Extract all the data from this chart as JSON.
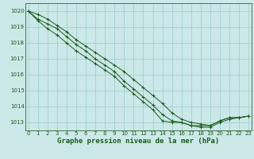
{
  "title": "Graphe pression niveau de la mer (hPa)",
  "xlabel_hours": [
    0,
    1,
    2,
    3,
    4,
    5,
    6,
    7,
    8,
    9,
    10,
    11,
    12,
    13,
    14,
    15,
    16,
    17,
    18,
    19,
    20,
    21,
    22,
    23
  ],
  "line1": [
    1020.0,
    1019.8,
    1019.5,
    1019.1,
    1018.7,
    1018.2,
    1017.8,
    1017.4,
    1017.0,
    1016.6,
    1016.2,
    1015.7,
    1015.2,
    1014.7,
    1014.2,
    1013.6,
    1013.2,
    1013.0,
    1012.9,
    1012.8,
    1013.1,
    1013.3,
    1013.3,
    1013.4
  ],
  "line2": [
    1020.0,
    1019.5,
    1019.2,
    1018.9,
    1018.4,
    1017.9,
    1017.5,
    1017.0,
    1016.6,
    1016.2,
    1015.6,
    1015.1,
    1014.6,
    1014.1,
    1013.5,
    1013.1,
    1013.0,
    1012.8,
    1012.8,
    1012.8,
    1013.1,
    1013.3,
    1013.3,
    1013.4
  ],
  "line3": [
    1020.0,
    1019.4,
    1018.9,
    1018.5,
    1018.0,
    1017.5,
    1017.1,
    1016.7,
    1016.3,
    1015.9,
    1015.3,
    1014.8,
    1014.3,
    1013.8,
    1013.1,
    1013.0,
    1013.0,
    1012.8,
    1012.7,
    1012.7,
    1013.0,
    1013.2,
    1013.3,
    1013.4
  ],
  "line_color": "#1a5c1a",
  "bg_color": "#cce8e8",
  "grid_color": "#99cccc",
  "marker": "+",
  "marker_size": 3,
  "marker_lw": 0.7,
  "line_lw": 0.7,
  "ylim": [
    1012.5,
    1020.5
  ],
  "yticks": [
    1013,
    1014,
    1015,
    1016,
    1017,
    1018,
    1019,
    1020
  ],
  "xlim": [
    -0.3,
    23.3
  ],
  "title_fontsize": 6.5,
  "tick_fontsize": 5,
  "label_color": "#1a5c1a",
  "spine_color": "#336633"
}
